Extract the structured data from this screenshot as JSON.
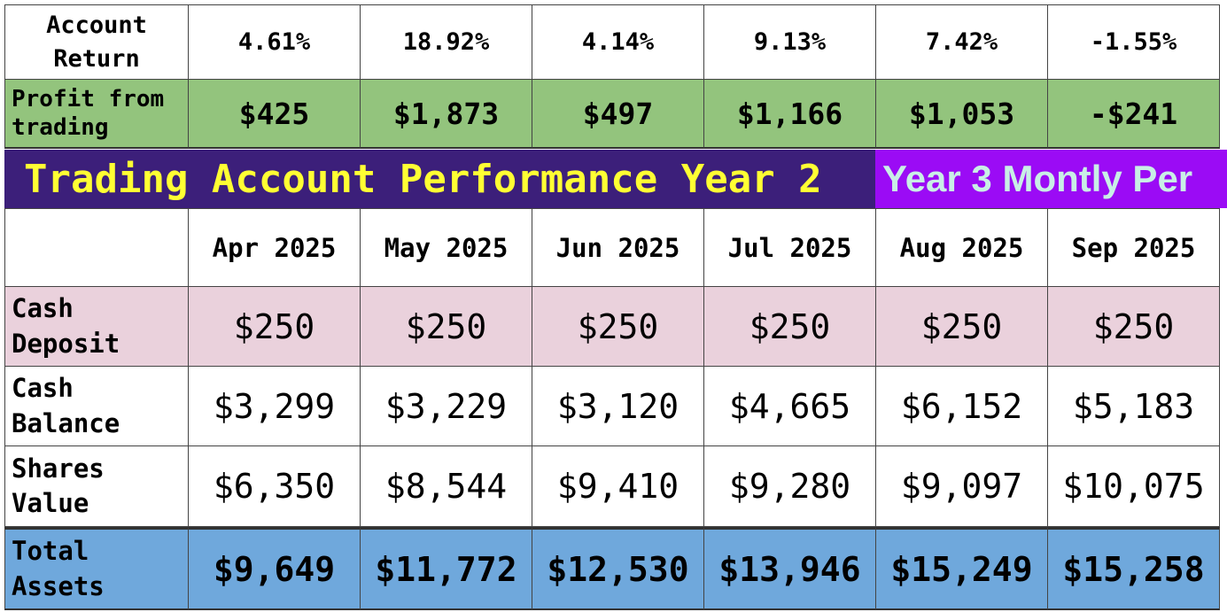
{
  "account_return": {
    "label_line1": "Account",
    "label_line2": "Return",
    "values": [
      "4.61%",
      "18.92%",
      "4.14%",
      "9.13%",
      "7.42%",
      "-1.55%"
    ]
  },
  "profit": {
    "label_line1": "Profit from",
    "label_line2": "trading",
    "values": [
      "$425",
      "$1,873",
      "$497",
      "$1,166",
      "$1,053",
      "-$241"
    ]
  },
  "title": {
    "main": "Trading Account Performance Year 2",
    "sub": "Year 3 Montly Per"
  },
  "months": [
    "Apr 2025",
    "May 2025",
    "Jun 2025",
    "Jul 2025",
    "Aug 2025",
    "Sep 2025"
  ],
  "cash_deposit": {
    "label_line1": "Cash",
    "label_line2": "Deposit",
    "values": [
      "$250",
      "$250",
      "$250",
      "$250",
      "$250",
      "$250"
    ]
  },
  "cash_balance": {
    "label_line1": "Cash",
    "label_line2": "Balance",
    "values": [
      "$3,299",
      "$3,229",
      "$3,120",
      "$4,665",
      "$6,152",
      "$5,183"
    ]
  },
  "shares_value": {
    "label_line1": "Shares",
    "label_line2": "Value",
    "values": [
      "$6,350",
      "$8,544",
      "$9,410",
      "$9,280",
      "$9,097",
      "$10,075"
    ]
  },
  "total_assets": {
    "label_line1": "Total",
    "label_line2": "Assets",
    "values": [
      "$9,649",
      "$11,772",
      "$12,530",
      "$13,946",
      "$15,249",
      "$15,258"
    ]
  },
  "colors": {
    "profit_bg": "#93c47d",
    "title_bg": "#3c1f7a",
    "title_text": "#ffff33",
    "sub_bg": "#9b0bf5",
    "sub_text": "#c9efe6",
    "deposit_bg": "#ead1dc",
    "total_bg": "#6fa8dc"
  }
}
